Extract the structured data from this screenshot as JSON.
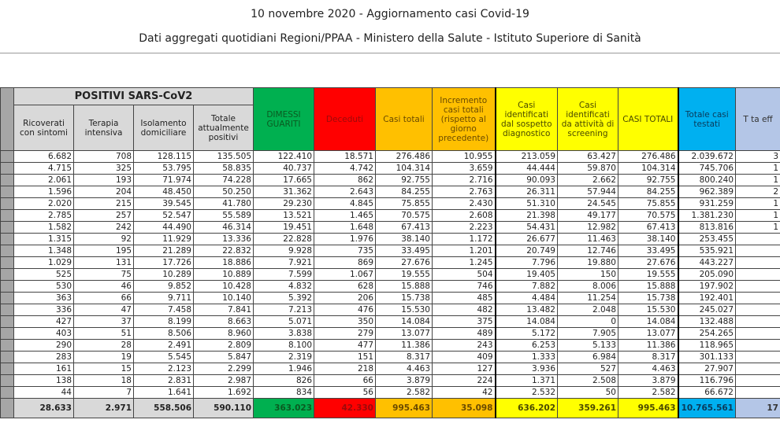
{
  "title": "10 novembre 2020 - Aggiornamento casi Covid-19",
  "subtitle": "Dati aggregati quotidiani Regioni/PPAA - Ministero della Salute - Istituto Superiore di Sanità",
  "headers": {
    "group": "POSITIVI SARS-CoV2",
    "columns": [
      "Ricoverati con sintomi",
      "Terapia intensiva",
      "Isolamento domiciliare",
      "Totale attualmente positivi",
      "DIMESSI GUARITI",
      "Deceduti",
      "Casi totali",
      "Incremento casi totali (rispetto al giorno precedente)",
      "Casi identificati dal sospetto diagnostico",
      "Casi identificati da attività di screening",
      "CASI TOTALI",
      "Totale casi testati",
      "T ta eff"
    ]
  },
  "colors": {
    "gray": "#d9d9d9",
    "green": "#00b050",
    "red": "#ff0000",
    "orange": "#ffc000",
    "yellow": "#ffff00",
    "blue": "#00b0f0",
    "light_blue": "#b4c6e7"
  },
  "rows": [
    [
      "6.682",
      "708",
      "128.115",
      "135.505",
      "122.410",
      "18.571",
      "276.486",
      "10.955",
      "213.059",
      "63.427",
      "276.486",
      "2.039.672",
      "3"
    ],
    [
      "4.715",
      "325",
      "53.795",
      "58.835",
      "40.737",
      "4.742",
      "104.314",
      "3.659",
      "44.444",
      "59.870",
      "104.314",
      "745.706",
      "1"
    ],
    [
      "2.061",
      "193",
      "71.974",
      "74.228",
      "17.665",
      "862",
      "92.755",
      "2.716",
      "90.093",
      "2.662",
      "92.755",
      "800.240",
      "1"
    ],
    [
      "1.596",
      "204",
      "48.450",
      "50.250",
      "31.362",
      "2.643",
      "84.255",
      "2.763",
      "26.311",
      "57.944",
      "84.255",
      "962.389",
      "2"
    ],
    [
      "2.020",
      "215",
      "39.545",
      "41.780",
      "29.230",
      "4.845",
      "75.855",
      "2.430",
      "51.310",
      "24.545",
      "75.855",
      "931.259",
      "1"
    ],
    [
      "2.785",
      "257",
      "52.547",
      "55.589",
      "13.521",
      "1.465",
      "70.575",
      "2.608",
      "21.398",
      "49.177",
      "70.575",
      "1.381.230",
      "1"
    ],
    [
      "1.582",
      "242",
      "44.490",
      "46.314",
      "19.451",
      "1.648",
      "67.413",
      "2.223",
      "54.431",
      "12.982",
      "67.413",
      "813.816",
      "1"
    ],
    [
      "1.315",
      "92",
      "11.929",
      "13.336",
      "22.828",
      "1.976",
      "38.140",
      "1.172",
      "26.677",
      "11.463",
      "38.140",
      "253.455",
      ""
    ],
    [
      "1.348",
      "195",
      "21.289",
      "22.832",
      "9.928",
      "735",
      "33.495",
      "1.201",
      "20.749",
      "12.746",
      "33.495",
      "535.921",
      ""
    ],
    [
      "1.029",
      "131",
      "17.726",
      "18.886",
      "7.921",
      "869",
      "27.676",
      "1.245",
      "7.796",
      "19.880",
      "27.676",
      "443.227",
      ""
    ],
    [
      "525",
      "75",
      "10.289",
      "10.889",
      "7.599",
      "1.067",
      "19.555",
      "504",
      "19.405",
      "150",
      "19.555",
      "205.090",
      ""
    ],
    [
      "530",
      "46",
      "9.852",
      "10.428",
      "4.832",
      "628",
      "15.888",
      "746",
      "7.882",
      "8.006",
      "15.888",
      "197.902",
      ""
    ],
    [
      "363",
      "66",
      "9.711",
      "10.140",
      "5.392",
      "206",
      "15.738",
      "485",
      "4.484",
      "11.254",
      "15.738",
      "192.401",
      ""
    ],
    [
      "336",
      "47",
      "7.458",
      "7.841",
      "7.213",
      "476",
      "15.530",
      "482",
      "13.482",
      "2.048",
      "15.530",
      "245.027",
      ""
    ],
    [
      "427",
      "37",
      "8.199",
      "8.663",
      "5.071",
      "350",
      "14.084",
      "375",
      "14.084",
      "0",
      "14.084",
      "132.488",
      ""
    ],
    [
      "403",
      "51",
      "8.506",
      "8.960",
      "3.838",
      "279",
      "13.077",
      "489",
      "5.172",
      "7.905",
      "13.077",
      "254.265",
      ""
    ],
    [
      "290",
      "28",
      "2.491",
      "2.809",
      "8.100",
      "477",
      "11.386",
      "243",
      "6.253",
      "5.133",
      "11.386",
      "118.965",
      ""
    ],
    [
      "283",
      "19",
      "5.545",
      "5.847",
      "2.319",
      "151",
      "8.317",
      "409",
      "1.333",
      "6.984",
      "8.317",
      "301.133",
      ""
    ],
    [
      "161",
      "15",
      "2.123",
      "2.299",
      "1.946",
      "218",
      "4.463",
      "127",
      "3.936",
      "527",
      "4.463",
      "27.907",
      ""
    ],
    [
      "138",
      "18",
      "2.831",
      "2.987",
      "826",
      "66",
      "3.879",
      "224",
      "1.371",
      "2.508",
      "3.879",
      "116.796",
      ""
    ],
    [
      "44",
      "7",
      "1.641",
      "1.692",
      "834",
      "56",
      "2.582",
      "42",
      "2.532",
      "50",
      "2.582",
      "66.672",
      ""
    ]
  ],
  "totals": [
    "28.633",
    "2.971",
    "558.506",
    "590.110",
    "363.023",
    "42.330",
    "995.463",
    "35.098",
    "636.202",
    "359.261",
    "995.463",
    "10.765.561",
    "17"
  ]
}
